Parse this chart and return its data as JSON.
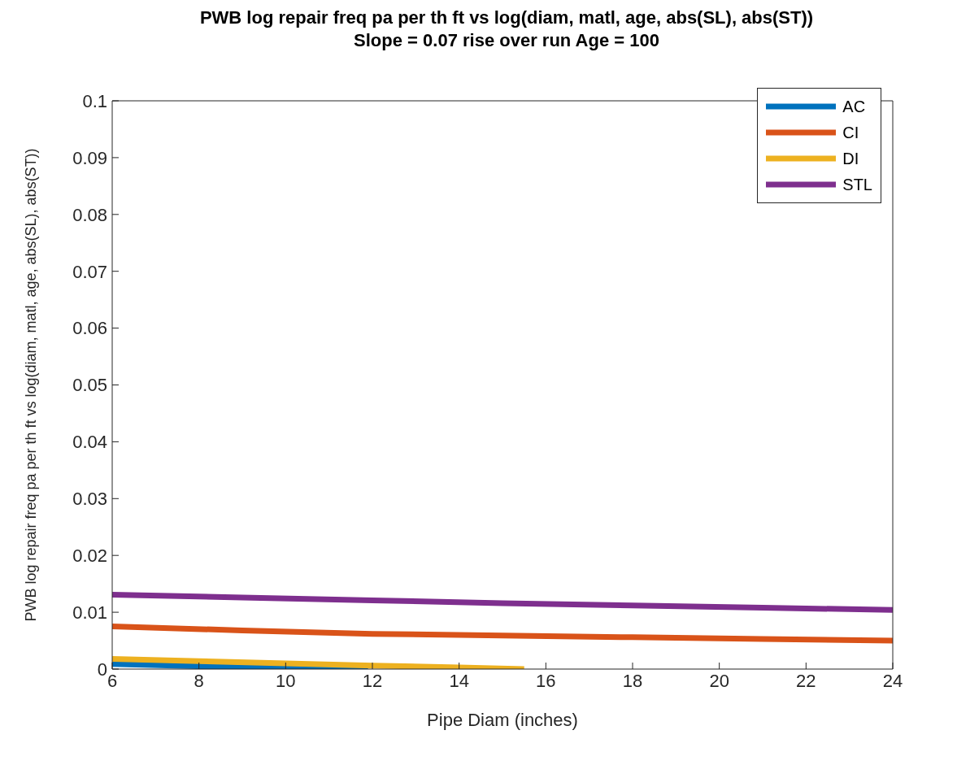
{
  "chart_data": {
    "type": "line",
    "title": "PWB log repair freq pa per th ft vs log(diam, matl, age, abs(SL), abs(ST))",
    "subtitle": "Slope = 0.07 rise over run  Age = 100",
    "xlabel": "Pipe Diam (inches)",
    "ylabel": "PWB log repair freq pa per th ft vs log(diam, matl, age, abs(SL), abs(ST))",
    "xlim": [
      6,
      24
    ],
    "xticks": [
      6,
      8,
      10,
      12,
      14,
      16,
      18,
      20,
      22,
      24
    ],
    "ylim": [
      0,
      0.1
    ],
    "yticks": [
      0,
      0.01,
      0.02,
      0.03,
      0.04,
      0.05,
      0.06,
      0.07,
      0.08,
      0.09,
      0.1
    ],
    "grid": false,
    "legend": "top right",
    "line_style": "solid",
    "marker": "none",
    "series": [
      {
        "name": "AC",
        "color": "#0072bd",
        "x": [
          6,
          8,
          10,
          11.9
        ],
        "values": [
          0.0009,
          0.0005,
          0.0002,
          0
        ]
      },
      {
        "name": "CI",
        "color": "#d95319",
        "x": [
          6,
          9,
          12,
          15,
          18,
          21,
          24
        ],
        "values": [
          0.0075,
          0.0068,
          0.0062,
          0.0059,
          0.0056,
          0.0053,
          0.005
        ]
      },
      {
        "name": "DI",
        "color": "#edb120",
        "x": [
          6,
          8,
          10,
          12,
          14,
          15.5
        ],
        "values": [
          0.0018,
          0.0014,
          0.001,
          0.0006,
          0.0003,
          0
        ]
      },
      {
        "name": "STL",
        "color": "#7e2f8e",
        "x": [
          6,
          9,
          12,
          15,
          18,
          21,
          24
        ],
        "values": [
          0.0131,
          0.0126,
          0.0121,
          0.0116,
          0.0112,
          0.0108,
          0.0104
        ]
      }
    ]
  }
}
